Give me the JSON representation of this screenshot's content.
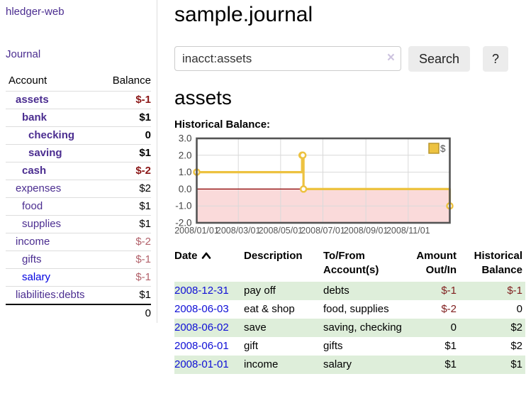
{
  "colors": {
    "link_purple": "#4b2d90",
    "link_blue": "#0000e0",
    "date_link_blue": "#0f0fd6",
    "negative_dark_red": "#8b1717",
    "negative_light_red": "#b2616a",
    "row_stripe_green": "#deeeda",
    "chart_series_gold": "#edc240",
    "chart_series_gold_border": "#b8962e",
    "below_zero_pink": "#fadada",
    "zero_line_red": "#8b0000",
    "grid_gray": "#d9d9d9",
    "chart_border_gray": "#545454",
    "button_gray": "#ececec"
  },
  "sidebar": {
    "app_title": "hledger-web",
    "nav_journal": "Journal",
    "accounts_table": {
      "headers": [
        "Account",
        "Balance"
      ],
      "rows": [
        {
          "account": "assets",
          "balance": "$-1",
          "indent": 0,
          "bold": true,
          "balance_style": "neg-dark"
        },
        {
          "account": "bank",
          "balance": "$1",
          "indent": 1,
          "bold": true,
          "balance_style": "pos"
        },
        {
          "account": "checking",
          "balance": "0",
          "indent": 2,
          "bold": true,
          "balance_style": "pos"
        },
        {
          "account": "saving",
          "balance": "$1",
          "indent": 2,
          "bold": true,
          "balance_style": "pos"
        },
        {
          "account": "cash",
          "balance": "$-2",
          "indent": 1,
          "bold": true,
          "balance_style": "neg-dark"
        },
        {
          "account": "expenses",
          "balance": "$2",
          "indent": 0,
          "bold": false,
          "balance_style": "pos"
        },
        {
          "account": "food",
          "balance": "$1",
          "indent": 1,
          "bold": false,
          "balance_style": "pos"
        },
        {
          "account": "supplies",
          "balance": "$1",
          "indent": 1,
          "bold": false,
          "balance_style": "pos"
        },
        {
          "account": "income",
          "balance": "$-2",
          "indent": 0,
          "bold": false,
          "balance_style": "neg-light"
        },
        {
          "account": "gifts",
          "balance": "$-1",
          "indent": 1,
          "bold": false,
          "balance_style": "neg-light"
        },
        {
          "account": "salary",
          "balance": "$-1",
          "indent": 1,
          "bold": false,
          "balance_style": "neg-light",
          "link": "blue"
        },
        {
          "account": "liabilities:debts",
          "balance": "$1",
          "indent": 0,
          "bold": false,
          "balance_style": "pos"
        }
      ],
      "total": "0"
    }
  },
  "main": {
    "title": "sample.journal",
    "search": {
      "value": "inacct:assets",
      "clear_icon": "×",
      "button_label": "Search",
      "help_label": "?"
    },
    "account_heading": "assets",
    "chart_label": "Historical Balance:"
  },
  "chart_data": {
    "type": "line",
    "style": "step-after",
    "title": "Historical Balance",
    "legend": "$",
    "legend_position": "top-right",
    "x_range": [
      "2008-01-01",
      "2008-12-31"
    ],
    "ylim": [
      -2,
      3
    ],
    "y_ticks": [
      {
        "value": 3,
        "label": "3.0"
      },
      {
        "value": 2,
        "label": "2.0"
      },
      {
        "value": 1,
        "label": "1.0"
      },
      {
        "value": 0,
        "label": "0.0"
      },
      {
        "value": -1,
        "label": "-1.0"
      },
      {
        "value": -2,
        "label": "-2.0"
      }
    ],
    "x_ticks": [
      {
        "date": "2008-01-01",
        "label": "2008/01/01"
      },
      {
        "date": "2008-03-01",
        "label": "2008/03/01"
      },
      {
        "date": "2008-05-01",
        "label": "2008/05/01"
      },
      {
        "date": "2008-07-01",
        "label": "2008/07/01"
      },
      {
        "date": "2008-09-01",
        "label": "2008/09/01"
      },
      {
        "date": "2008-11-01",
        "label": "2008/11/01"
      }
    ],
    "grid": true,
    "below_zero_shaded": true,
    "series": [
      {
        "name": "$",
        "color": "#edc240",
        "points": [
          {
            "date": "2008-01-01",
            "value": 1
          },
          {
            "date": "2008-06-01",
            "value": 2
          },
          {
            "date": "2008-06-02",
            "value": 2
          },
          {
            "date": "2008-06-03",
            "value": 0
          },
          {
            "date": "2008-12-31",
            "value": -1
          }
        ]
      }
    ]
  },
  "register_table": {
    "headers": [
      {
        "line1": "Date",
        "line2": "",
        "align": "left",
        "sort": "asc"
      },
      {
        "line1": "Description",
        "line2": "",
        "align": "left"
      },
      {
        "line1": "To/From",
        "line2": "Account(s)",
        "align": "left"
      },
      {
        "line1": "Amount",
        "line2": "Out/In",
        "align": "right"
      },
      {
        "line1": "Historical",
        "line2": "Balance",
        "align": "right"
      }
    ],
    "rows": [
      {
        "date": "2008-12-31",
        "description": "pay off",
        "accounts": "debts",
        "amount": "$-1",
        "balance": "$-1",
        "amount_neg": true,
        "balance_neg": true,
        "stripe": true
      },
      {
        "date": "2008-06-03",
        "description": "eat & shop",
        "accounts": "food, supplies",
        "amount": "$-2",
        "balance": "0",
        "amount_neg": true,
        "balance_neg": false,
        "stripe": false
      },
      {
        "date": "2008-06-02",
        "description": "save",
        "accounts": "saving, checking",
        "amount": "0",
        "balance": "$2",
        "amount_neg": false,
        "balance_neg": false,
        "stripe": true
      },
      {
        "date": "2008-06-01",
        "description": "gift",
        "accounts": "gifts",
        "amount": "$1",
        "balance": "$2",
        "amount_neg": false,
        "balance_neg": false,
        "stripe": false
      },
      {
        "date": "2008-01-01",
        "description": "income",
        "accounts": "salary",
        "amount": "$1",
        "balance": "$1",
        "amount_neg": false,
        "balance_neg": false,
        "stripe": true
      }
    ]
  }
}
